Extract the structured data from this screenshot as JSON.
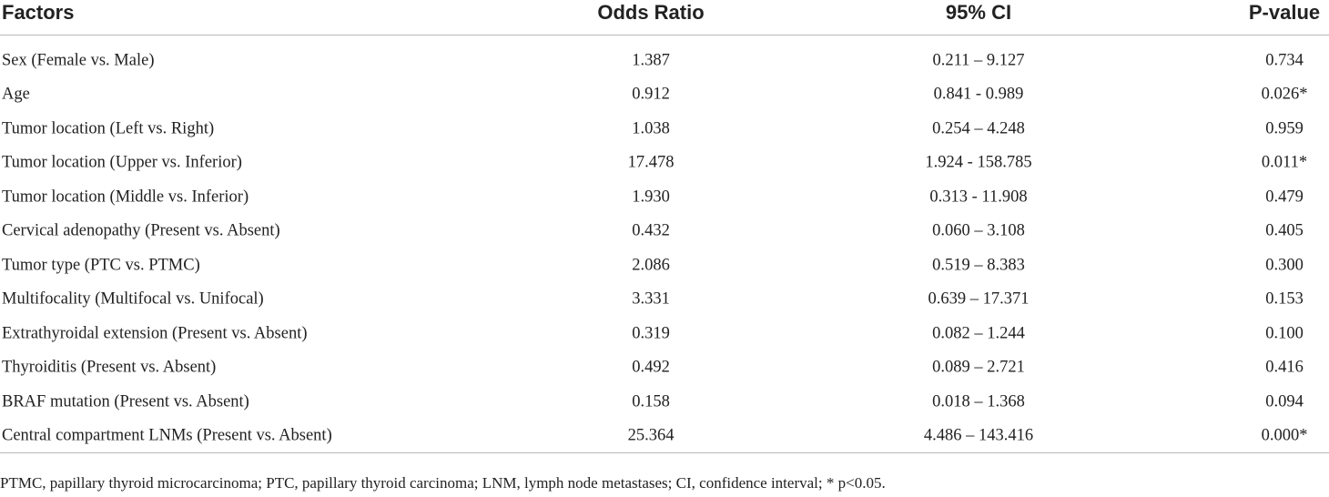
{
  "table": {
    "header": [
      "Factors",
      "Odds Ratio",
      "95% CI",
      "P-value"
    ],
    "rows": [
      [
        "Sex (Female vs. Male)",
        "1.387",
        "0.211 – 9.127",
        "0.734"
      ],
      [
        "Age",
        "0.912",
        "0.841 - 0.989",
        "0.026*"
      ],
      [
        "Tumor location (Left vs. Right)",
        "1.038",
        "0.254 – 4.248",
        "0.959"
      ],
      [
        "Tumor location (Upper vs. Inferior)",
        "17.478",
        "1.924 - 158.785",
        "0.011*"
      ],
      [
        "Tumor location (Middle vs. Inferior)",
        "1.930",
        "0.313 - 11.908",
        "0.479"
      ],
      [
        "Cervical adenopathy (Present vs. Absent)",
        "0.432",
        "0.060 – 3.108",
        "0.405"
      ],
      [
        "Tumor type (PTC vs. PTMC)",
        "2.086",
        "0.519 – 8.383",
        "0.300"
      ],
      [
        "Multifocality (Multifocal vs. Unifocal)",
        "3.331",
        "0.639 – 17.371",
        "0.153"
      ],
      [
        "Extrathyroidal extension (Present vs. Absent)",
        "0.319",
        "0.082 – 1.244",
        "0.100"
      ],
      [
        "Thyroiditis (Present vs. Absent)",
        "0.492",
        "0.089 – 2.721",
        "0.416"
      ],
      [
        "BRAF mutation (Present vs. Absent)",
        "0.158",
        "0.018 – 1.368",
        "0.094"
      ],
      [
        "Central compartment LNMs (Present vs. Absent)",
        "25.364",
        "4.486 – 143.416",
        "0.000*"
      ]
    ],
    "footnote": "PTMC, papillary thyroid microcarcinoma; PTC, papillary thyroid carcinoma; LNM, lymph node metastases; CI, confidence interval; * p<0.05."
  }
}
